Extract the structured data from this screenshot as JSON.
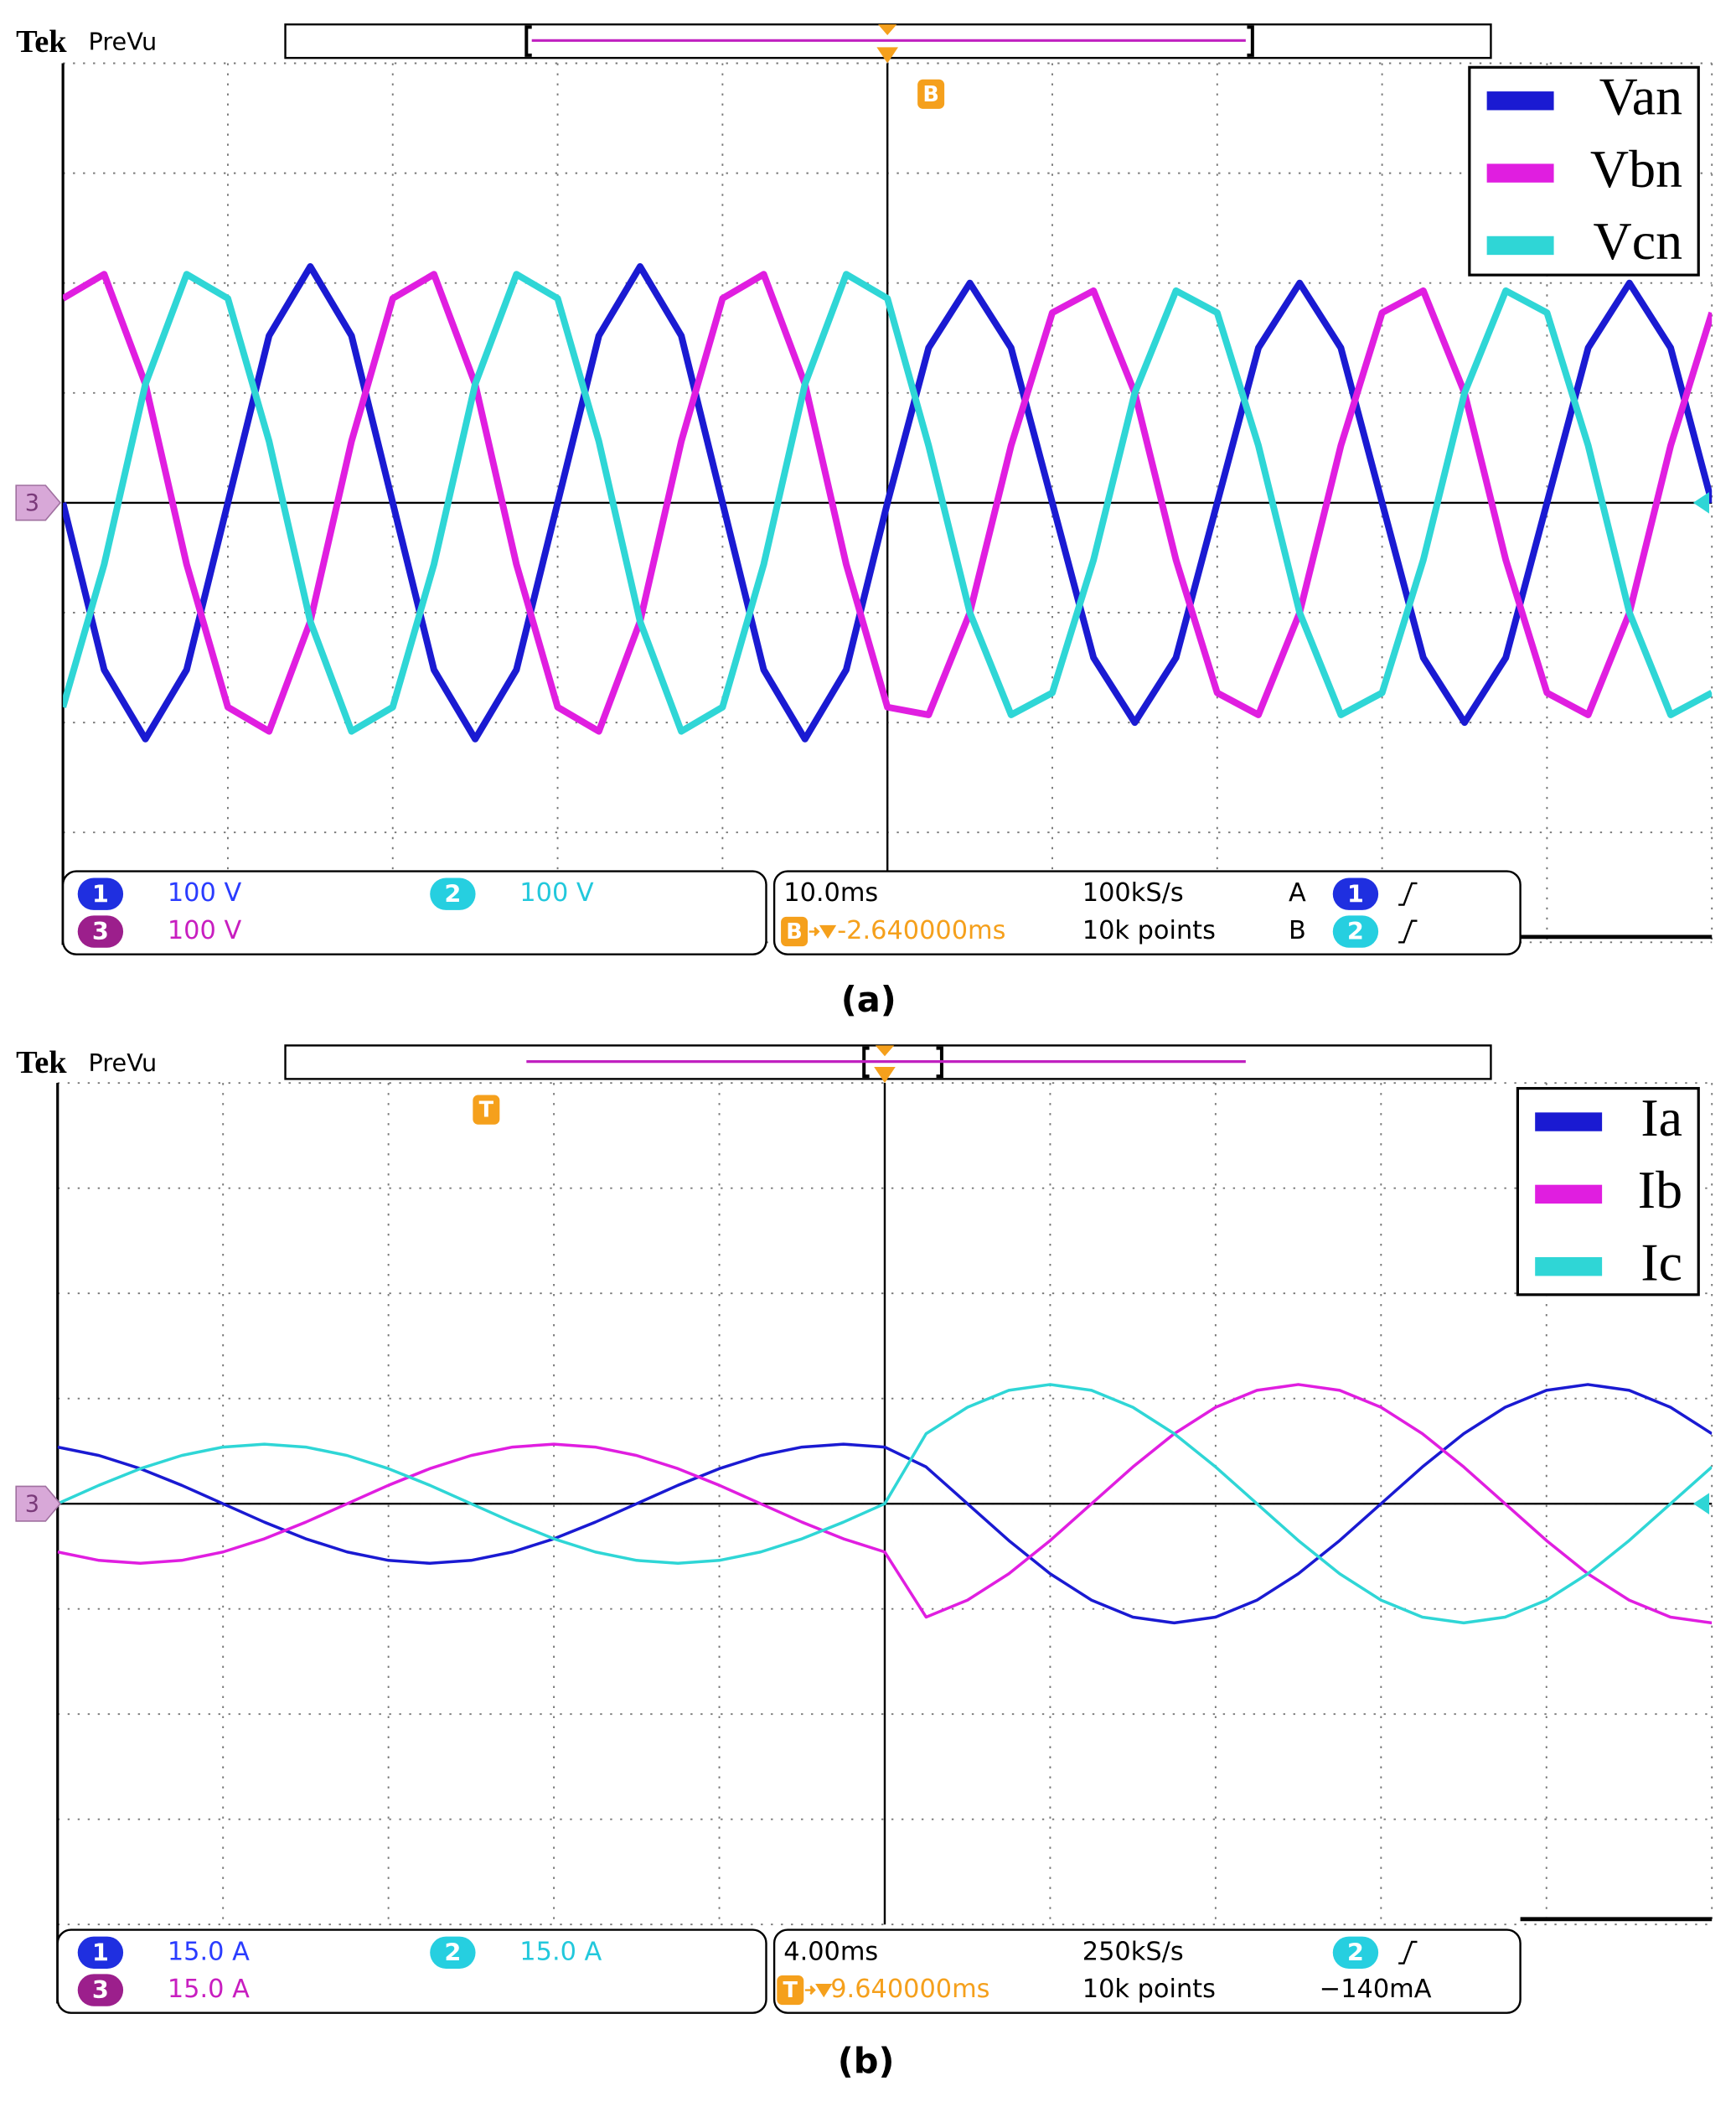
{
  "chart_data": [
    {
      "type": "line",
      "brand": "Tek",
      "mode": "PreVu",
      "caption": "(a)",
      "ground_marker": "3",
      "x": [
        -50,
        -47.5,
        -45,
        -42.5,
        -40,
        -37.5,
        -35,
        -32.5,
        -30,
        -27.5,
        -25,
        -22.5,
        -20,
        -17.5,
        -15,
        -12.5,
        -10,
        -7.5,
        -5,
        -2.5,
        0,
        2.5,
        5,
        7.5,
        10,
        12.5,
        15,
        17.5,
        20,
        22.5,
        25,
        27.5,
        30,
        32.5,
        35,
        37.5,
        40,
        42.5,
        45,
        47.5,
        50
      ],
      "xlim": [
        -50,
        50
      ],
      "xticks": [
        -50,
        -40,
        -30,
        -20,
        -10,
        0,
        10,
        20,
        30,
        40,
        50
      ],
      "ylim": [
        -400,
        400
      ],
      "yticks": [
        -400,
        -300,
        -200,
        -100,
        0,
        100,
        200,
        300,
        400
      ],
      "grid": true,
      "series": [
        {
          "name": "Van",
          "color": "#1a1ad2",
          "values": [
            0,
            -152,
            -215,
            -152,
            0,
            152,
            215,
            152,
            0,
            -152,
            -215,
            -152,
            0,
            152,
            215,
            152,
            0,
            -152,
            -215,
            -152,
            0,
            141,
            200,
            141,
            0,
            -141,
            -200,
            -141,
            0,
            141,
            200,
            141,
            0,
            -141,
            -200,
            -141,
            0,
            141,
            200,
            141,
            0
          ]
        },
        {
          "name": "Vbn",
          "color": "#e01ee0",
          "values": [
            186,
            208,
            108,
            -56,
            -186,
            -208,
            -108,
            56,
            186,
            208,
            108,
            -56,
            -186,
            -208,
            -108,
            56,
            186,
            208,
            108,
            -56,
            -186,
            -193,
            -100,
            52,
            173,
            193,
            100,
            -52,
            -173,
            -193,
            -100,
            52,
            173,
            193,
            100,
            -52,
            -173,
            -193,
            -100,
            52,
            173
          ]
        },
        {
          "name": "Vcn",
          "color": "#2fd6d6",
          "values": [
            -186,
            -56,
            108,
            208,
            186,
            56,
            -108,
            -208,
            -186,
            -56,
            108,
            208,
            186,
            56,
            -108,
            -208,
            -186,
            -56,
            108,
            208,
            186,
            52,
            -100,
            -193,
            -173,
            -52,
            100,
            193,
            173,
            52,
            -100,
            -193,
            -173,
            -52,
            100,
            193,
            173,
            52,
            -100,
            -193,
            -173
          ]
        }
      ],
      "channels": [
        {
          "number": "1",
          "scale": "100 V",
          "color": "#1f2fe0",
          "text_color": "#2a3cff"
        },
        {
          "number": "2",
          "scale": "100 V",
          "color": "#26cfe0",
          "text_color": "#22c8dc"
        },
        {
          "number": "3",
          "scale": "100 V",
          "color": "#9c1f8c",
          "text_color": "#c81ec0"
        }
      ],
      "readout": {
        "timebase": "10.0ms",
        "sample_rate": "100kS/s",
        "position_marker": "B",
        "position": "-2.640000ms",
        "record_length": "10k points",
        "triggers": [
          {
            "label": "A",
            "channel": "1"
          },
          {
            "label": "B",
            "channel": "2"
          }
        ]
      }
    },
    {
      "type": "line",
      "brand": "Tek",
      "mode": "PreVu",
      "caption": "(b)",
      "ground_marker": "3",
      "x": [
        -20,
        -19,
        -18,
        -17,
        -16,
        -15,
        -14,
        -13,
        -12,
        -11,
        -10,
        -9,
        -8,
        -7,
        -6,
        -5,
        -4,
        -3,
        -2,
        -1,
        0,
        1,
        2,
        3,
        4,
        5,
        6,
        7,
        8,
        9,
        10,
        11,
        12,
        13,
        14,
        15,
        16,
        17,
        18,
        19,
        20
      ],
      "xlim": [
        -20,
        20
      ],
      "xticks": [
        -20,
        -16,
        -12,
        -8,
        -4,
        0,
        4,
        8,
        12,
        16,
        20
      ],
      "ylim": [
        -60,
        60
      ],
      "yticks": [
        -60,
        -45,
        -30,
        -15,
        0,
        15,
        30,
        45,
        60
      ],
      "grid": true,
      "series": [
        {
          "name": "Ia",
          "color": "#1a1ad2",
          "values": [
            8.08,
            6.88,
            5,
            2.63,
            0,
            -2.63,
            -5,
            -6.88,
            -8.08,
            -8.5,
            -8.08,
            -6.88,
            -5,
            -2.63,
            0,
            2.63,
            5,
            6.88,
            8.08,
            8.5,
            8.08,
            5.25,
            0,
            -5.25,
            -9.99,
            -13.75,
            -16.17,
            -17,
            -16.17,
            -13.75,
            -9.99,
            -5.25,
            0,
            5.25,
            9.99,
            13.75,
            16.17,
            17,
            16.17,
            13.75,
            9.99
          ]
        },
        {
          "name": "Ib",
          "color": "#e01ee0",
          "values": [
            -6.88,
            -8.08,
            -8.5,
            -8.08,
            -6.88,
            -5,
            -2.63,
            0,
            2.63,
            5,
            6.88,
            8.08,
            8.5,
            8.08,
            6.88,
            5,
            2.63,
            0,
            -2.63,
            -5,
            -6.88,
            -16.17,
            -13.75,
            -9.99,
            -5.25,
            0,
            5.25,
            9.99,
            13.75,
            16.17,
            17,
            16.17,
            13.75,
            9.99,
            5.25,
            0,
            -5.25,
            -9.99,
            -13.75,
            -16.17,
            -17
          ]
        },
        {
          "name": "Ic",
          "color": "#2fd6d6",
          "values": [
            0,
            2.63,
            5,
            6.88,
            8.08,
            8.5,
            8.08,
            6.88,
            5,
            2.63,
            0,
            -2.63,
            -5,
            -6.88,
            -8.08,
            -8.5,
            -8.08,
            -6.88,
            -5,
            -2.63,
            0,
            9.99,
            13.75,
            16.17,
            17,
            16.17,
            13.75,
            9.99,
            5.25,
            0,
            -5.25,
            -9.99,
            -13.75,
            -16.17,
            -17,
            -16.17,
            -13.75,
            -9.99,
            -5.25,
            0,
            5.25
          ]
        }
      ],
      "channels": [
        {
          "number": "1",
          "scale": "15.0 A",
          "color": "#1f2fe0",
          "text_color": "#2a3cff"
        },
        {
          "number": "2",
          "scale": "15.0 A",
          "color": "#26cfe0",
          "text_color": "#22c8dc"
        },
        {
          "number": "3",
          "scale": "15.0 A",
          "color": "#9c1f8c",
          "text_color": "#c81ec0"
        }
      ],
      "readout": {
        "timebase": "4.00ms",
        "sample_rate": "250kS/s",
        "position_marker": "T",
        "position": "9.640000ms",
        "record_length": "10k points",
        "triggers": [
          {
            "channel": "2",
            "level": "−140mA"
          }
        ]
      }
    }
  ]
}
